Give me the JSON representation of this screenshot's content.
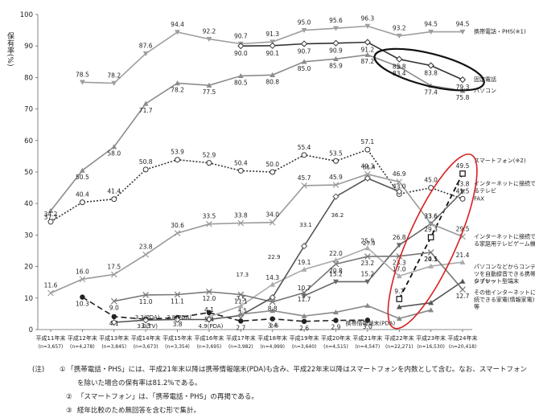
{
  "chart_data": {
    "type": "line",
    "ylabel": "保有率(%)",
    "ylim": [
      0,
      100
    ],
    "yticks": [
      0,
      10,
      20,
      30,
      40,
      50,
      60,
      70,
      80,
      90,
      100
    ],
    "categories": [
      "平成11年末",
      "平成12年末",
      "平成13年末",
      "平成14年末",
      "平成15年末",
      "平成16年末",
      "平成17年末",
      "平成18年末",
      "平成19年末",
      "平成20年末",
      "平成21年末",
      "平成22年末",
      "平成23年末",
      "平成24年末"
    ],
    "sample_sizes": [
      "(n=3,657)",
      "(n=4,278)",
      "(n=3,845)",
      "(n=3,673)",
      "(n=3,354)",
      "(n=3,695)",
      "(n=3,982)",
      "(n=4,999)",
      "(n=3,640)",
      "(n=4,515)",
      "(n=4,547)",
      "(n=22,271)",
      "(n=16,530)",
      "(n=20,418)"
    ],
    "series": [
      {
        "name": "携帯電話・PHS(※1)",
        "color": "#9e9e9e",
        "dash": "",
        "marker": "tri-down",
        "values": [
          null,
          78.5,
          78.2,
          87.6,
          94.4,
          92.2,
          90.7,
          91.3,
          95.0,
          95.6,
          96.3,
          93.2,
          94.5,
          94.5
        ]
      },
      {
        "name": "固定電話",
        "color": "#333333",
        "dash": "",
        "marker": "diamond",
        "values": [
          null,
          null,
          null,
          null,
          null,
          null,
          90.0,
          90.1,
          90.7,
          90.9,
          91.2,
          85.8,
          83.8,
          79.3
        ]
      },
      {
        "name": "パソコン",
        "color": "#8c8c8c",
        "dash": "",
        "marker": "tri-up",
        "values": [
          37.7,
          50.5,
          58.0,
          71.7,
          78.2,
          77.5,
          80.5,
          80.8,
          85.0,
          85.9,
          87.2,
          83.4,
          77.4,
          75.8
        ]
      },
      {
        "name": "FAX",
        "color": "#333333",
        "dash": "2,2",
        "marker": "circle-open",
        "values": [
          34.2,
          40.4,
          41.4,
          50.8,
          53.9,
          52.9,
          50.4,
          50.0,
          55.4,
          53.5,
          57.1,
          43.0,
          45.0,
          41.5
        ]
      },
      {
        "name": "スマートフォン(※2)",
        "color": "#111111",
        "dash": "6,4",
        "marker": "square-open",
        "values": [
          null,
          null,
          null,
          null,
          null,
          null,
          null,
          null,
          null,
          null,
          null,
          9.7,
          29.3,
          49.5
        ]
      },
      {
        "name": "インターネットに接続できるテレビ",
        "color": "#666666",
        "dash": "",
        "marker": "tri-down",
        "values": [
          null,
          null,
          null,
          null,
          null,
          null,
          null,
          null,
          10.7,
          15.2,
          15.2,
          26.8,
          33.6,
          43.8
        ]
      },
      {
        "name": "インターネットに接続できる家庭用テレビゲーム機",
        "color": "#9a9a9a",
        "dash": "",
        "marker": "x",
        "values": [
          11.6,
          16.0,
          17.5,
          23.8,
          30.6,
          33.5,
          33.8,
          34.0,
          45.7,
          45.9,
          49.3,
          46.9,
          33.6,
          29.5
        ]
      },
      {
        "name": "パソコンなどからコンテンツを自動録音できる携帯プレイヤー",
        "color": "#aaaaaa",
        "dash": "",
        "marker": "tri-up",
        "values": [
          null,
          null,
          null,
          null,
          null,
          4.1,
          7.5,
          14.3,
          19.1,
          22.0,
          25.9,
          17.0,
          20.1,
          21.4
        ]
      },
      {
        "name": "タブレット型端末",
        "color": "#555555",
        "dash": "",
        "marker": "tri-up",
        "values": [
          null,
          null,
          null,
          null,
          null,
          null,
          null,
          null,
          null,
          null,
          null,
          7.2,
          8.5,
          15.3
        ]
      },
      {
        "name": "その他インターネットに接続できる家電(情報家電)等",
        "color": "#777777",
        "dash": "",
        "marker": "x",
        "values": [
          null,
          null,
          9.0,
          11.0,
          11.1,
          12.0,
          11.1,
          8.8,
          11.7,
          20.8,
          23.2,
          23.3,
          24.5,
          12.7
        ]
      },
      {
        "name": "携帯情報端末(PDA)",
        "color": "#222222",
        "dash": "7,4",
        "marker": "dot",
        "values": [
          null,
          10.3,
          4.1,
          3.3,
          3.8,
          5.4,
          2.7,
          3.4,
          2.6,
          2.9,
          3.0,
          null,
          null,
          null
        ]
      },
      {
        "name": "",
        "color": "#555555",
        "dash": "",
        "marker": "diamond",
        "values": [
          null,
          null,
          2.3,
          3.0,
          3.2,
          3.2,
          4.5,
          10.2,
          26.5,
          42.2,
          48.0,
          43.8,
          null,
          null
        ]
      },
      {
        "name": "",
        "color": "#888888",
        "dash": "",
        "marker": "tri-up",
        "values": [
          null,
          null,
          null,
          null,
          null,
          null,
          4.9,
          6.0,
          4.3,
          5.5,
          7.6,
          3.5,
          6.2,
          null
        ]
      }
    ],
    "annotations": [
      "3.3(PDA)",
      "3.8(PDA)",
      "3.0(TV)",
      "4.9(PDA)",
      "4.5",
      "36.2",
      "51.4",
      "27.3",
      "22.9",
      "33.1",
      "17.3",
      "2.6"
    ],
    "highlights": [
      "black ellipse around 固定電話/パソコン for 平成22〜24年末",
      "red ellipse around スマートフォン for 平成22〜24年末"
    ]
  },
  "notes": {
    "label": "(注)",
    "n1_num": "①",
    "n1_line1": "「携帯電話・PHS」には、平成21年末以降は携帯情報端末(PDA)も含み、平成22年末以降はスマートフォンを内数として含む。なお、スマートフォン",
    "n1_line2": "を除いた場合の保有率は81.2%である。",
    "n2_num": "②",
    "n2_text": "「スマートフォン」は、「携帯電話・PHS」の再掲である。",
    "n3_num": "③",
    "n3_text": "経年比較のため無回答を含む形で集計。"
  }
}
